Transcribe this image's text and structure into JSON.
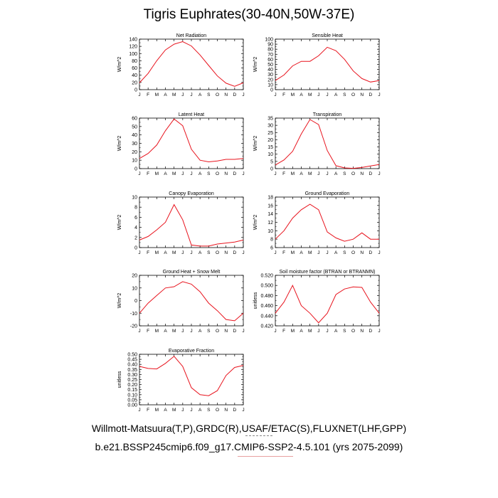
{
  "title": "Tigris Euphrates(30-40N,50W-37E)",
  "footer": {
    "line1": "Willmott-Matsuura(T,P),GRDC(R),USAF/ETAC(S),FLUXNET(LHF,GPP)",
    "line2": "b.e21.BSSP245cmip6.f09_g17.CMIP6-SSP2-4.5.101 (yrs 2075-2099)"
  },
  "colors": {
    "line": "#e8141e",
    "axis": "#000000"
  },
  "chart_data": [
    {
      "type": "line",
      "title": "Net Radiation",
      "ylabel": "W/m^2",
      "categories": [
        "J",
        "F",
        "M",
        "A",
        "M",
        "J",
        "J",
        "A",
        "S",
        "O",
        "N",
        "D",
        "J"
      ],
      "values": [
        19,
        45,
        80,
        110,
        126,
        133,
        121,
        96,
        67,
        38,
        18,
        9,
        19
      ],
      "ylim": [
        0,
        140
      ],
      "yticks": [
        "0",
        "20",
        "40",
        "60",
        "80",
        "100",
        "120",
        "140"
      ]
    },
    {
      "type": "line",
      "title": "Sensible Heat",
      "ylabel": "W/m^2",
      "categories": [
        "J",
        "F",
        "M",
        "A",
        "M",
        "J",
        "J",
        "A",
        "S",
        "O",
        "N",
        "D",
        "J"
      ],
      "values": [
        18,
        29,
        47,
        56,
        56,
        67,
        84,
        77,
        60,
        37,
        22,
        15,
        18
      ],
      "ylim": [
        0,
        100
      ],
      "yticks": [
        "0",
        "10",
        "20",
        "30",
        "40",
        "50",
        "60",
        "70",
        "80",
        "90",
        "100"
      ]
    },
    {
      "type": "line",
      "title": "Latent Heat",
      "ylabel": "W/m^2",
      "categories": [
        "J",
        "F",
        "M",
        "A",
        "M",
        "J",
        "J",
        "A",
        "S",
        "O",
        "N",
        "D",
        "J"
      ],
      "values": [
        12,
        18,
        28,
        45,
        59,
        51,
        23,
        10,
        8,
        9,
        11,
        11,
        12
      ],
      "ylim": [
        0,
        60
      ],
      "yticks": [
        "0",
        "10",
        "20",
        "30",
        "40",
        "50",
        "60"
      ]
    },
    {
      "type": "line",
      "title": "Transpiration",
      "ylabel": "W/m^2",
      "categories": [
        "J",
        "F",
        "M",
        "A",
        "M",
        "J",
        "J",
        "A",
        "S",
        "O",
        "N",
        "D",
        "J"
      ],
      "values": [
        2.5,
        6,
        12,
        24,
        34,
        30.5,
        12.5,
        2,
        0.5,
        0.2,
        0.8,
        1.8,
        2.8
      ],
      "ylim": [
        0,
        35
      ],
      "yticks": [
        "0",
        "5",
        "10",
        "15",
        "20",
        "25",
        "30",
        "35"
      ]
    },
    {
      "type": "line",
      "title": "Canopy Evaporation",
      "ylabel": "W/m^2",
      "categories": [
        "J",
        "F",
        "M",
        "A",
        "M",
        "J",
        "J",
        "A",
        "S",
        "O",
        "N",
        "D",
        "J"
      ],
      "values": [
        1.5,
        2.2,
        3.5,
        5,
        8.5,
        5.5,
        0.5,
        0.3,
        0.3,
        0.7,
        0.9,
        1.1,
        1.5
      ],
      "ylim": [
        0,
        10
      ],
      "yticks": [
        "0",
        "2",
        "4",
        "6",
        "8",
        "10"
      ]
    },
    {
      "type": "line",
      "title": "Ground Evaporation",
      "ylabel": "W/m^2",
      "categories": [
        "J",
        "F",
        "M",
        "A",
        "M",
        "J",
        "J",
        "A",
        "S",
        "O",
        "N",
        "D",
        "J"
      ],
      "values": [
        8,
        10,
        13,
        15,
        16.3,
        15,
        9.7,
        8.3,
        7.5,
        8,
        9.5,
        8,
        8
      ],
      "ylim": [
        6,
        18
      ],
      "yticks": [
        "6",
        "8",
        "10",
        "12",
        "14",
        "16",
        "18"
      ]
    },
    {
      "type": "line",
      "title": "Ground Heat + Snow Melt",
      "ylabel": "W/m^2",
      "categories": [
        "J",
        "F",
        "M",
        "A",
        "M",
        "J",
        "J",
        "A",
        "S",
        "O",
        "N",
        "D",
        "J"
      ],
      "values": [
        -10,
        -2,
        4,
        10,
        11,
        15,
        13,
        7,
        -2,
        -8,
        -15,
        -16,
        -10
      ],
      "ylim": [
        -20,
        20
      ],
      "yticks": [
        "-20",
        "-10",
        "0",
        "10",
        "20"
      ]
    },
    {
      "type": "line",
      "title": "Soil moisture factor (BTRAN or BTRANMN)",
      "ylabel": "unitless",
      "categories": [
        "J",
        "F",
        "M",
        "A",
        "M",
        "J",
        "J",
        "A",
        "S",
        "O",
        "N",
        "D",
        "J"
      ],
      "values": [
        0.445,
        0.467,
        0.5,
        0.46,
        0.445,
        0.426,
        0.445,
        0.482,
        0.493,
        0.497,
        0.496,
        0.467,
        0.445
      ],
      "ylim": [
        0.42,
        0.52
      ],
      "yticks": [
        "0.420",
        "0.440",
        "0.460",
        "0.480",
        "0.500",
        "0.520"
      ]
    },
    {
      "type": "line",
      "title": "Evaporative Fraction",
      "ylabel": "unitless",
      "categories": [
        "J",
        "F",
        "M",
        "A",
        "M",
        "J",
        "J",
        "A",
        "S",
        "O",
        "N",
        "D",
        "J"
      ],
      "values": [
        0.38,
        0.36,
        0.355,
        0.41,
        0.48,
        0.38,
        0.17,
        0.1,
        0.09,
        0.14,
        0.29,
        0.37,
        0.39
      ],
      "ylim": [
        0,
        0.5
      ],
      "yticks": [
        "0.00",
        "0.05",
        "0.10",
        "0.15",
        "0.20",
        "0.25",
        "0.30",
        "0.35",
        "0.40",
        "0.45",
        "0.50"
      ]
    }
  ]
}
